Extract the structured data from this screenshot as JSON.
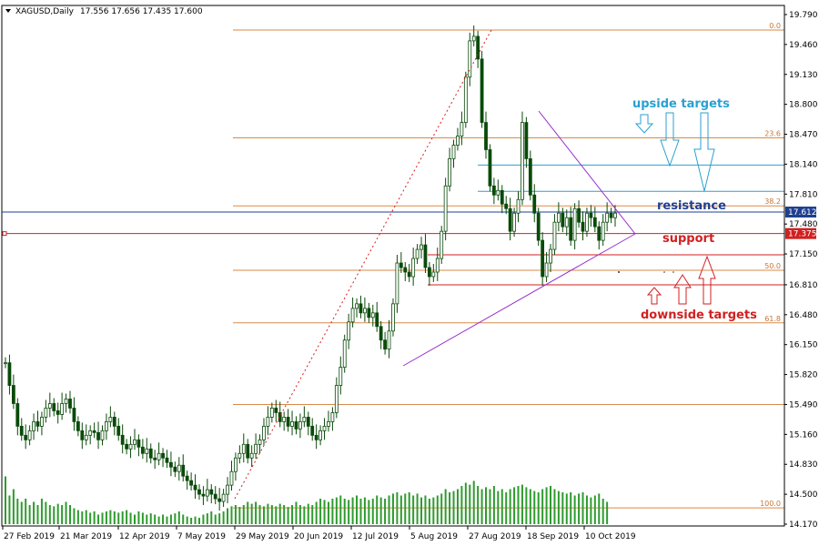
{
  "header": {
    "symbol": "XAGUSD,Daily",
    "ohlc": "17.556 17.656 17.435 17.600"
  },
  "chart_data": {
    "type": "candlestick",
    "y_ticks": [
      "19.790",
      "19.460",
      "19.130",
      "18.800",
      "18.470",
      "18.140",
      "17.810",
      "17.480",
      "17.150",
      "16.810",
      "16.480",
      "16.150",
      "15.820",
      "15.490",
      "15.160",
      "14.830",
      "14.500",
      "14.170"
    ],
    "x_ticks": [
      "27 Feb 2019",
      "21 Mar 2019",
      "12 Apr 2019",
      "7 May 2019",
      "29 May 2019",
      "20 Jun 2019",
      "12 Jul 2019",
      "5 Aug 2019",
      "27 Aug 2019",
      "18 Sep 2019",
      "10 Oct 2019"
    ],
    "ylim": [
      14.17,
      19.79
    ],
    "current_price": "17.612",
    "support_price": "17.375",
    "fib_levels": [
      {
        "label": "0.0",
        "price": 19.62
      },
      {
        "label": "23.6",
        "price": 18.43
      },
      {
        "label": "38.2",
        "price": 17.68
      },
      {
        "label": "50.0",
        "price": 16.97
      },
      {
        "label": "61.8",
        "price": 16.39
      },
      {
        "label": "100.0",
        "price": 14.35
      }
    ],
    "extra_fib_lines": [
      15.49
    ],
    "upside_target_lines": [
      18.13,
      17.84
    ],
    "downside_target_lines": [
      17.14,
      16.81
    ],
    "support_line": 17.375,
    "current_line": 17.612,
    "closes": [
      15.95,
      15.7,
      15.5,
      15.25,
      15.15,
      15.1,
      15.2,
      15.3,
      15.25,
      15.35,
      15.45,
      15.5,
      15.42,
      15.38,
      15.5,
      15.55,
      15.45,
      15.3,
      15.2,
      15.1,
      15.15,
      15.2,
      15.18,
      15.1,
      15.2,
      15.3,
      15.35,
      15.25,
      15.15,
      15.05,
      15.0,
      15.05,
      15.1,
      15.02,
      14.95,
      15.0,
      14.9,
      14.88,
      14.95,
      14.9,
      14.85,
      14.8,
      14.75,
      14.82,
      14.7,
      14.65,
      14.6,
      14.55,
      14.5,
      14.48,
      14.55,
      14.5,
      14.45,
      14.42,
      14.5,
      14.6,
      14.75,
      14.9,
      14.95,
      15.05,
      14.9,
      14.95,
      15.05,
      15.1,
      15.25,
      15.35,
      15.45,
      15.4,
      15.3,
      15.35,
      15.25,
      15.3,
      15.22,
      15.3,
      15.35,
      15.25,
      15.15,
      15.1,
      15.2,
      15.25,
      15.3,
      15.4,
      15.7,
      15.9,
      16.2,
      16.4,
      16.55,
      16.6,
      16.5,
      16.55,
      16.45,
      16.5,
      16.35,
      16.2,
      16.1,
      16.3,
      16.6,
      17.05,
      17.0,
      16.95,
      16.9,
      17.1,
      17.2,
      17.25,
      17.0,
      16.9,
      16.95,
      17.1,
      17.4,
      17.9,
      18.2,
      18.35,
      18.45,
      18.6,
      19.1,
      19.5,
      19.55,
      19.3,
      18.6,
      18.3,
      17.9,
      17.8,
      17.85,
      17.7,
      17.65,
      17.4,
      17.6,
      17.75,
      18.6,
      18.2,
      17.8,
      17.6,
      17.3,
      16.9,
      17.05,
      17.2,
      17.5,
      17.6,
      17.45,
      17.55,
      17.3,
      17.65,
      17.5,
      17.4,
      17.6,
      17.55,
      17.45,
      17.3,
      17.5,
      17.6,
      17.55,
      17.6
    ],
    "volumes": [
      0.75,
      0.45,
      0.55,
      0.4,
      0.35,
      0.4,
      0.3,
      0.35,
      0.3,
      0.4,
      0.35,
      0.3,
      0.28,
      0.32,
      0.3,
      0.35,
      0.3,
      0.25,
      0.22,
      0.2,
      0.22,
      0.18,
      0.2,
      0.15,
      0.18,
      0.2,
      0.22,
      0.2,
      0.18,
      0.2,
      0.22,
      0.18,
      0.15,
      0.2,
      0.18,
      0.15,
      0.17,
      0.15,
      0.12,
      0.15,
      0.12,
      0.15,
      0.17,
      0.2,
      0.15,
      0.12,
      0.1,
      0.12,
      0.1,
      0.15,
      0.17,
      0.2,
      0.15,
      0.17,
      0.2,
      0.25,
      0.28,
      0.3,
      0.27,
      0.3,
      0.35,
      0.32,
      0.35,
      0.3,
      0.28,
      0.32,
      0.3,
      0.28,
      0.32,
      0.3,
      0.27,
      0.3,
      0.35,
      0.3,
      0.28,
      0.32,
      0.3,
      0.35,
      0.4,
      0.38,
      0.35,
      0.4,
      0.42,
      0.45,
      0.4,
      0.38,
      0.42,
      0.45,
      0.4,
      0.42,
      0.38,
      0.4,
      0.45,
      0.42,
      0.4,
      0.45,
      0.48,
      0.5,
      0.45,
      0.48,
      0.5,
      0.45,
      0.48,
      0.42,
      0.45,
      0.4,
      0.42,
      0.45,
      0.48,
      0.55,
      0.5,
      0.52,
      0.55,
      0.6,
      0.65,
      0.62,
      0.68,
      0.6,
      0.55,
      0.58,
      0.55,
      0.6,
      0.52,
      0.55,
      0.5,
      0.55,
      0.58,
      0.6,
      0.62,
      0.58,
      0.55,
      0.52,
      0.5,
      0.55,
      0.58,
      0.6,
      0.55,
      0.52,
      0.5,
      0.48,
      0.5,
      0.45,
      0.48,
      0.5,
      0.45,
      0.42,
      0.45,
      0.48,
      0.4,
      0.35
    ]
  },
  "annotations": {
    "upside_targets": "upside targets",
    "resistance": "resistance",
    "support": "support",
    "downside_targets": "downside targets"
  },
  "colors": {
    "bull": "#0a4a0a",
    "bear": "#0a4a0a",
    "volume": "#2e9b2e",
    "fib": "#d98a4a",
    "pattern": "#9932cc",
    "current": "#1f3f8f",
    "support": "#d02020",
    "upside": "#2aa0d0",
    "downside": "#d02020"
  }
}
